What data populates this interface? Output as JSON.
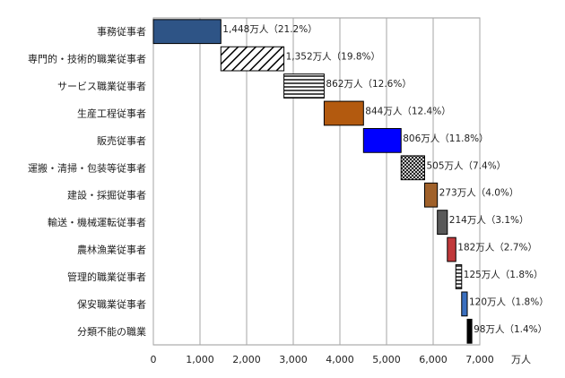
{
  "chart_data": {
    "type": "bar",
    "subtype": "waterfall-horizontal",
    "categories": [
      "事務従事者",
      "専門的・技術的職業従事者",
      "サービス職業従事者",
      "生産工程従事者",
      "販売従事者",
      "運搬・清掃・包装等従事者",
      "建設・採掘従事者",
      "輸送・機械運転従事者",
      "農林漁業従事者",
      "管理的職業従事者",
      "保安職業従事者",
      "分類不能の職業"
    ],
    "values": [
      1448,
      1352,
      862,
      844,
      806,
      505,
      273,
      214,
      182,
      125,
      120,
      98
    ],
    "data_labels": [
      "1,448万人（21.2%）",
      "1,352万人（19.8%）",
      "862万人（12.6%）",
      "844万人（12.4%）",
      "806万人（11.8%）",
      "505万人（7.4%）",
      "273万人（4.0%）",
      "214万人（3.1%）",
      "182万人（2.7%）",
      "125万人（1.8%）",
      "120万人（1.8%）",
      "98万人（1.4%）"
    ],
    "fills": [
      {
        "color": "#2e5486",
        "pattern": "solid"
      },
      {
        "color": "#000000",
        "pattern": "diagonal"
      },
      {
        "color": "#000000",
        "pattern": "horizontal"
      },
      {
        "color": "#b35a0f",
        "pattern": "solid"
      },
      {
        "color": "#0000ff",
        "pattern": "solid"
      },
      {
        "color": "#000000",
        "pattern": "crosshatch"
      },
      {
        "color": "#a0612a",
        "pattern": "solid"
      },
      {
        "color": "#595959",
        "pattern": "solid"
      },
      {
        "color": "#c0393b",
        "pattern": "solid"
      },
      {
        "color": "#000000",
        "pattern": "horizontal"
      },
      {
        "color": "#3a6fbf",
        "pattern": "solid"
      },
      {
        "color": "#000000",
        "pattern": "solid"
      }
    ],
    "xlim": [
      0,
      7000
    ],
    "x_ticks": [
      0,
      1000,
      2000,
      3000,
      4000,
      5000,
      6000,
      7000
    ],
    "x_tick_labels": [
      "0",
      "1,000",
      "2,000",
      "3,000",
      "4,000",
      "5,000",
      "6,000",
      "7,000"
    ],
    "x_unit": "万人",
    "grid": true,
    "legend": "none"
  }
}
